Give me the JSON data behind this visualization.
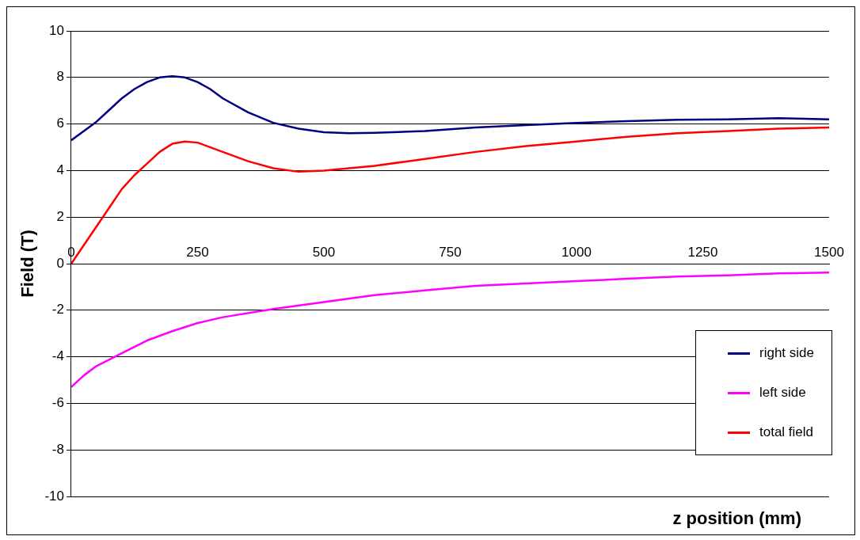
{
  "chart_data": {
    "type": "line",
    "xlabel": "z position (mm)",
    "ylabel": "Field (T)",
    "xlim": [
      0,
      1500
    ],
    "xticks": [
      0,
      250,
      500,
      750,
      1000,
      1250,
      1500
    ],
    "ylim": [
      -10,
      10
    ],
    "yticks": [
      -10,
      -8,
      -6,
      -4,
      -2,
      0,
      2,
      4,
      6,
      8,
      10
    ],
    "grid": "y",
    "legend": "bottom right",
    "marker": "none",
    "line_style": "solid",
    "series": [
      {
        "name": "right side",
        "color": "#000080",
        "x": [
          0,
          25,
          50,
          75,
          100,
          125,
          150,
          175,
          200,
          225,
          250,
          275,
          300,
          350,
          400,
          450,
          500,
          550,
          600,
          700,
          800,
          900,
          1000,
          1100,
          1200,
          1300,
          1400,
          1500
        ],
        "values": [
          5.3,
          5.7,
          6.1,
          6.6,
          7.1,
          7.5,
          7.8,
          8.0,
          8.05,
          8.0,
          7.8,
          7.5,
          7.1,
          6.5,
          6.05,
          5.8,
          5.65,
          5.6,
          5.62,
          5.7,
          5.85,
          5.95,
          6.05,
          6.12,
          6.18,
          6.2,
          6.25,
          6.2
        ]
      },
      {
        "name": "left side",
        "color": "#ff00ff",
        "x": [
          0,
          25,
          50,
          100,
          150,
          200,
          250,
          300,
          400,
          500,
          600,
          700,
          800,
          900,
          1000,
          1100,
          1200,
          1300,
          1400,
          1500
        ],
        "values": [
          -5.3,
          -4.8,
          -4.4,
          -3.85,
          -3.3,
          -2.9,
          -2.55,
          -2.3,
          -1.95,
          -1.65,
          -1.35,
          -1.15,
          -0.95,
          -0.85,
          -0.75,
          -0.65,
          -0.55,
          -0.5,
          -0.42,
          -0.38
        ]
      },
      {
        "name": "total field",
        "color": "#ff0000",
        "x": [
          0,
          25,
          50,
          75,
          100,
          125,
          150,
          175,
          200,
          225,
          250,
          300,
          350,
          400,
          450,
          500,
          550,
          600,
          700,
          800,
          900,
          1000,
          1100,
          1200,
          1300,
          1400,
          1500
        ],
        "values": [
          0,
          0.8,
          1.6,
          2.4,
          3.2,
          3.8,
          4.3,
          4.8,
          5.15,
          5.25,
          5.2,
          4.8,
          4.4,
          4.1,
          3.95,
          4.0,
          4.1,
          4.2,
          4.5,
          4.8,
          5.05,
          5.25,
          5.45,
          5.6,
          5.7,
          5.8,
          5.85
        ]
      }
    ]
  }
}
